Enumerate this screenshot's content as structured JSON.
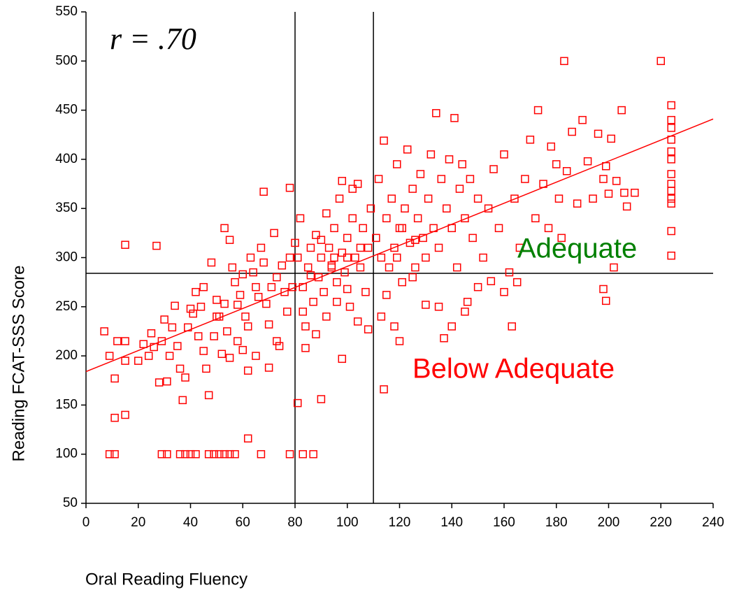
{
  "chart_data": {
    "type": "scatter",
    "x_label": "Oral Reading Fluency",
    "y_label": "Reading FCAT-SSS Score",
    "color": "#ff0000",
    "marker": "square",
    "xlim": [
      0,
      240
    ],
    "ylim": [
      50,
      550
    ],
    "xticks": [
      0,
      20,
      40,
      60,
      80,
      100,
      120,
      140,
      160,
      180,
      200,
      220,
      240
    ],
    "yticks": [
      50,
      100,
      150,
      200,
      250,
      300,
      350,
      400,
      450,
      500,
      550
    ],
    "fit_line": {
      "color": "#ff0000",
      "x": [
        0,
        240
      ],
      "values": [
        184,
        441
      ]
    },
    "reference_lines": {
      "color": "#000000",
      "x": [
        80,
        110
      ],
      "y": [
        284
      ]
    },
    "annotations": [
      {
        "text": "r = .70",
        "color": "#000000"
      },
      {
        "text": "Adequate",
        "color": "#008000"
      },
      {
        "text": "Below Adequate",
        "color": "#ff0000"
      }
    ],
    "x": [
      183,
      220,
      224,
      224,
      224,
      224,
      224,
      224,
      224,
      224,
      224,
      224,
      224,
      224,
      224,
      7,
      9,
      9,
      11,
      11,
      11,
      12,
      15,
      15,
      15,
      27,
      15,
      68,
      78,
      53,
      62,
      114,
      163,
      202,
      198,
      199,
      29,
      31,
      36,
      38,
      40,
      42,
      47,
      49,
      51,
      53,
      55,
      57,
      67,
      78,
      83,
      87,
      81,
      90,
      98,
      20,
      22,
      24,
      25,
      26,
      28,
      29,
      30,
      31,
      32,
      33,
      34,
      35,
      36,
      37,
      38,
      39,
      40,
      41,
      42,
      43,
      44,
      45,
      46,
      47,
      48,
      49,
      50,
      51,
      52,
      53,
      54,
      55,
      56,
      57,
      58,
      59,
      60,
      60,
      61,
      62,
      63,
      64,
      65,
      66,
      67,
      68,
      69,
      70,
      71,
      72,
      73,
      74,
      75,
      76,
      77,
      78,
      79,
      62,
      65,
      70,
      73,
      55,
      58,
      45,
      50,
      81,
      82,
      83,
      84,
      85,
      86,
      87,
      88,
      89,
      90,
      91,
      92,
      93,
      94,
      95,
      96,
      97,
      98,
      99,
      100,
      101,
      102,
      103,
      104,
      105,
      106,
      107,
      108,
      109,
      84,
      88,
      92,
      96,
      100,
      104,
      108,
      90,
      95,
      100,
      105,
      98,
      102,
      94,
      86,
      83,
      80,
      111,
      112,
      113,
      114,
      115,
      116,
      117,
      118,
      119,
      120,
      121,
      122,
      123,
      124,
      125,
      126,
      127,
      128,
      129,
      130,
      131,
      132,
      133,
      134,
      135,
      136,
      137,
      138,
      139,
      140,
      141,
      142,
      143,
      144,
      145,
      146,
      147,
      148,
      150,
      152,
      154,
      156,
      158,
      160,
      162,
      164,
      166,
      168,
      170,
      172,
      173,
      175,
      177,
      178,
      180,
      181,
      182,
      184,
      186,
      188,
      190,
      192,
      194,
      196,
      198,
      199,
      200,
      201,
      203,
      205,
      206,
      207,
      210,
      113,
      118,
      120,
      125,
      130,
      135,
      140,
      145,
      150,
      155,
      160,
      165,
      115,
      119,
      121,
      126
    ],
    "values": [
      500,
      500,
      455,
      440,
      432,
      420,
      408,
      400,
      385,
      375,
      368,
      360,
      355,
      327,
      302,
      225,
      200,
      100,
      100,
      137,
      177,
      215,
      215,
      140,
      313,
      312,
      195,
      367,
      371,
      330,
      116,
      166,
      230,
      290,
      268,
      256,
      100,
      100,
      100,
      100,
      100,
      100,
      100,
      100,
      100,
      100,
      100,
      100,
      100,
      100,
      100,
      100,
      152,
      156,
      197,
      195,
      212,
      200,
      223,
      209,
      173,
      215,
      237,
      174,
      200,
      229,
      251,
      210,
      187,
      155,
      178,
      229,
      248,
      243,
      265,
      220,
      250,
      205,
      187,
      160,
      295,
      220,
      257,
      240,
      202,
      253,
      225,
      318,
      290,
      275,
      252,
      262,
      283,
      206,
      240,
      230,
      300,
      285,
      270,
      260,
      310,
      295,
      253,
      232,
      270,
      325,
      280,
      210,
      292,
      265,
      245,
      300,
      270,
      185,
      200,
      188,
      215,
      198,
      215,
      270,
      240,
      300,
      340,
      270,
      230,
      290,
      310,
      255,
      323,
      280,
      300,
      265,
      345,
      310,
      290,
      330,
      275,
      360,
      305,
      285,
      320,
      250,
      340,
      300,
      375,
      290,
      330,
      265,
      310,
      350,
      208,
      222,
      240,
      255,
      268,
      235,
      227,
      318,
      300,
      300,
      310,
      378,
      370,
      292,
      282,
      245,
      315,
      320,
      380,
      300,
      419,
      340,
      290,
      360,
      310,
      395,
      330,
      275,
      350,
      410,
      315,
      370,
      290,
      340,
      385,
      320,
      300,
      360,
      405,
      330,
      447,
      310,
      380,
      218,
      350,
      400,
      330,
      442,
      290,
      370,
      395,
      340,
      255,
      380,
      320,
      360,
      300,
      350,
      390,
      330,
      405,
      285,
      360,
      310,
      380,
      420,
      340,
      450,
      375,
      330,
      413,
      395,
      360,
      320,
      388,
      428,
      355,
      440,
      398,
      360,
      426,
      380,
      393,
      365,
      421,
      378,
      450,
      366,
      352,
      366,
      240,
      230,
      215,
      280,
      252,
      250,
      230,
      245,
      270,
      276,
      265,
      275,
      262,
      300,
      330,
      318
    ]
  }
}
